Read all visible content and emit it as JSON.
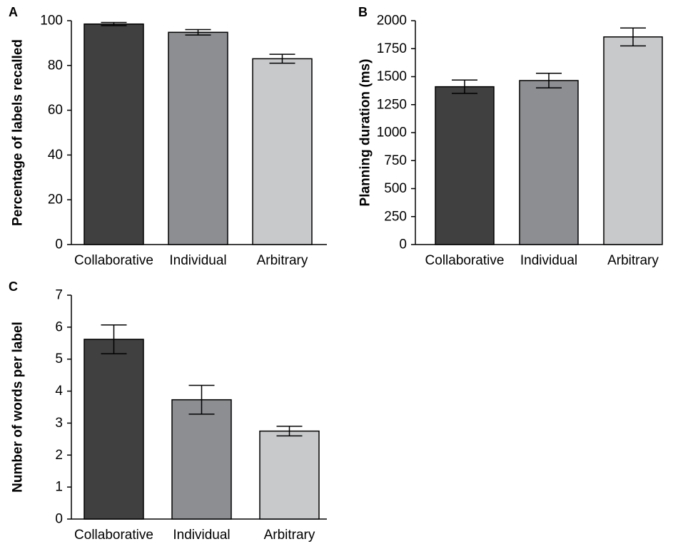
{
  "chart_data": [
    {
      "type": "bar",
      "panel": "A",
      "categories": [
        "Collaborative",
        "Individual",
        "Arbitrary"
      ],
      "values": [
        98.5,
        94.8,
        83.0
      ],
      "errors": [
        0.7,
        1.2,
        2.0
      ],
      "xlabel": "",
      "ylabel": "Percentage of labels recalled",
      "ylim": [
        0,
        100
      ],
      "yticks": [
        "0",
        "20",
        "40",
        "60",
        "80",
        "100"
      ],
      "colors": [
        "#404040",
        "#8c8e91",
        "#c8c9cb"
      ],
      "grid": false
    },
    {
      "type": "bar",
      "panel": "B",
      "categories": [
        "Collaborative",
        "Individual",
        "Arbitrary"
      ],
      "values": [
        1410,
        1465,
        1855
      ],
      "errors": [
        60,
        65,
        80
      ],
      "xlabel": "",
      "ylabel": "Planning duration (ms)",
      "ylim": [
        0,
        2000
      ],
      "yticks": [
        "0",
        "250",
        "500",
        "750",
        "1000",
        "1250",
        "1500",
        "1750",
        "2000"
      ],
      "colors": [
        "#404040",
        "#8c8e91",
        "#c8c9cb"
      ],
      "grid": false
    },
    {
      "type": "bar",
      "panel": "C",
      "categories": [
        "Collaborative",
        "Individual",
        "Arbitrary"
      ],
      "values": [
        5.62,
        3.73,
        2.75
      ],
      "errors": [
        0.45,
        0.45,
        0.15
      ],
      "xlabel": "",
      "ylabel": "Number of words per label",
      "ylim": [
        0,
        7
      ],
      "yticks": [
        "0",
        "1",
        "2",
        "3",
        "4",
        "5",
        "6",
        "7"
      ],
      "colors": [
        "#404040",
        "#8c8e91",
        "#c8c9cb"
      ],
      "grid": false
    }
  ]
}
